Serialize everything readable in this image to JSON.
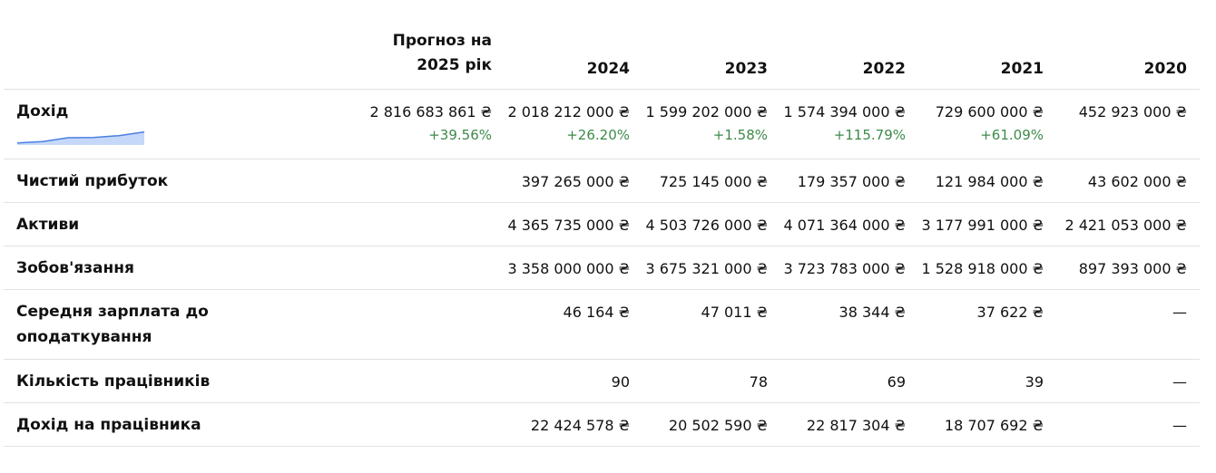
{
  "header": {
    "forecast": "Прогноз на 2025 рік",
    "years": [
      "2024",
      "2023",
      "2022",
      "2021",
      "2020"
    ]
  },
  "rows": {
    "income": {
      "label": "Дохід",
      "forecast": "2 816 683 861 ₴",
      "values": [
        "2 018 212 000 ₴",
        "1 599 202 000 ₴",
        "1 574 394 000 ₴",
        "729 600 000 ₴",
        "452 923 000 ₴"
      ],
      "forecast_change": "+39.56%",
      "changes": [
        "+26.20%",
        "+1.58%",
        "+115.79%",
        "+61.09%",
        ""
      ]
    },
    "net_profit": {
      "label": "Чистий прибуток",
      "values": [
        "397 265 000 ₴",
        "725 145 000 ₴",
        "179 357 000 ₴",
        "121 984 000 ₴",
        "43 602 000 ₴"
      ]
    },
    "assets": {
      "label": "Активи",
      "values": [
        "4 365 735 000 ₴",
        "4 503 726 000 ₴",
        "4 071 364 000 ₴",
        "3 177 991 000 ₴",
        "2 421 053 000 ₴"
      ]
    },
    "liabilities": {
      "label": "Зобов'язання",
      "values": [
        "3 358 000 000 ₴",
        "3 675 321 000 ₴",
        "3 723 783 000 ₴",
        "1 528 918 000 ₴",
        "897 393 000 ₴"
      ]
    },
    "avg_salary": {
      "label": "Середня зарплата до оподаткування",
      "values": [
        "46 164 ₴",
        "47 011 ₴",
        "38 344 ₴",
        "37 622 ₴",
        "—"
      ]
    },
    "employees": {
      "label": "Кількість працівників",
      "values": [
        "90",
        "78",
        "69",
        "39",
        "—"
      ]
    },
    "income_per_employee": {
      "label": "Дохід на працівника",
      "values": [
        "22 424 578 ₴",
        "20 502 590 ₴",
        "22 817 304 ₴",
        "18 707 692 ₴",
        "—"
      ]
    }
  },
  "colors": {
    "positive": "#3d8a4a",
    "spark_line": "#4a7fe0",
    "spark_fill": "#c6d8fa",
    "border": "#e2e2e2"
  }
}
